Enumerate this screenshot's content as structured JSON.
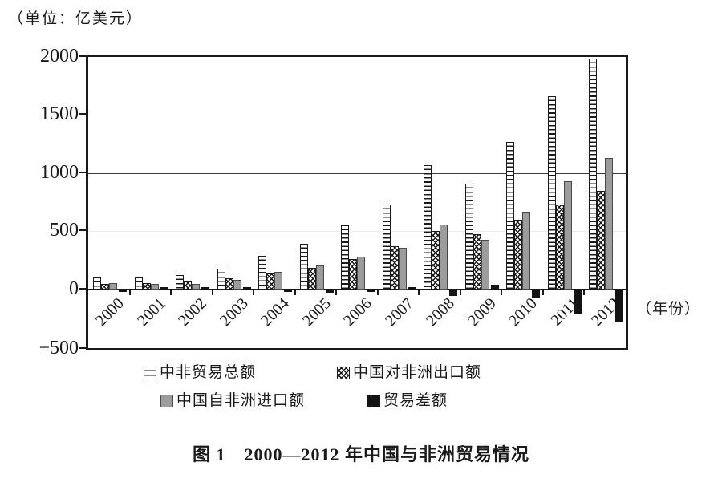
{
  "chart_data": {
    "type": "bar",
    "title": "图 1　2000—2012 年中国与非洲贸易情况",
    "unit_label": "（单位：亿美元）",
    "xlabel": "（年份）",
    "ylabel": "",
    "ylim": [
      -500,
      2000
    ],
    "y_ticks": [
      {
        "value": 2000,
        "label": "2000"
      },
      {
        "value": 1500,
        "label": "1500"
      },
      {
        "value": 1000,
        "label": "1000"
      },
      {
        "value": 500,
        "label": "500"
      },
      {
        "value": 0,
        "label": "0"
      },
      {
        "value": -500,
        "label": "−500"
      }
    ],
    "grid": "horizontal",
    "grid_emphasis_value": 1000,
    "legend_position": "bottom",
    "categories": [
      "2000",
      "2001",
      "2002",
      "2003",
      "2004",
      "2005",
      "2006",
      "2007",
      "2008",
      "2009",
      "2010",
      "2011",
      "2012"
    ],
    "series": [
      {
        "key": "total",
        "name": "中非贸易总额",
        "pattern": "horizontal-stripes",
        "values": [
          106,
          108,
          124,
          185,
          294,
          398,
          555,
          735,
          1068,
          910,
          1269,
          1663,
          1985
        ]
      },
      {
        "key": "export",
        "name": "中国对非洲出口额",
        "pattern": "crosshatch",
        "values": [
          50,
          60,
          70,
          101,
          138,
          186,
          267,
          372,
          508,
          477,
          599,
          731,
          853
        ]
      },
      {
        "key": "import",
        "name": "中国自非洲进口额",
        "pattern": "solid-gray",
        "values": [
          56,
          48,
          54,
          84,
          156,
          212,
          288,
          363,
          560,
          433,
          670,
          932,
          1132
        ]
      },
      {
        "key": "balance",
        "name": "贸易差额",
        "pattern": "solid-black",
        "values": [
          -6,
          12,
          16,
          17,
          -18,
          -26,
          -21,
          9,
          -52,
          44,
          -71,
          -201,
          -279
        ]
      }
    ]
  },
  "colors": {
    "frame": "#1a1a1a",
    "bar_gray": "#9c9c9c",
    "bar_black": "#141414",
    "pattern_line": "#1a1a1a",
    "grid_faint": "#ebebeb",
    "grid_dark": "#3c3c3c"
  }
}
